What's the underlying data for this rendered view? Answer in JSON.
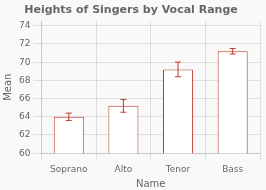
{
  "chart_data": {
    "type": "bar",
    "title": "Heights of Singers by Vocal Range",
    "xlabel": "Name",
    "ylabel": "Mean",
    "categories": [
      "Soprano",
      "Alto",
      "Tenor",
      "Bass"
    ],
    "values": [
      64.0,
      65.2,
      69.2,
      71.2
    ],
    "errors": [
      0.4,
      0.7,
      0.8,
      0.3
    ],
    "color": "#C0392B",
    "ylim": [
      60,
      74.5
    ],
    "yticks": [
      60,
      62,
      64,
      66,
      68,
      70,
      72,
      74
    ],
    "grid": true
  }
}
